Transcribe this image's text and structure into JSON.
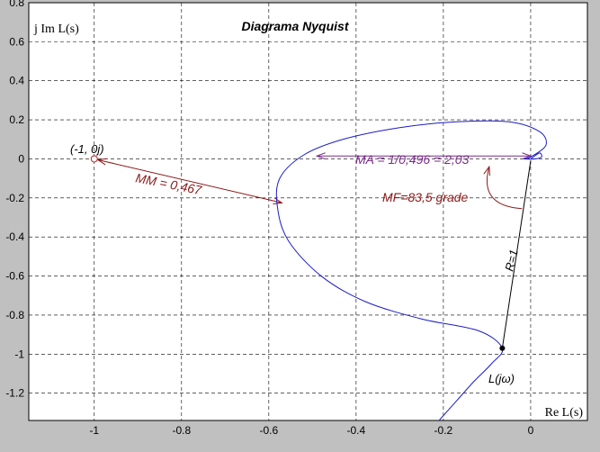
{
  "chart_data": {
    "type": "line",
    "title": "Diagrama Nyquist",
    "xlabel": "Re L(s)",
    "ylabel": "j Im L(s)",
    "xlim": [
      -1.15,
      0.13
    ],
    "ylim": [
      -1.34,
      0.8
    ],
    "grid": true,
    "x_ticks": [
      -1,
      -0.8,
      -0.6,
      -0.4,
      -0.2,
      0
    ],
    "x_tick_labels": [
      "-1",
      "-0.8",
      "-0.6",
      "-0.4",
      "-0.2",
      "0"
    ],
    "y_ticks": [
      0.8,
      0.6,
      0.4,
      0.2,
      0,
      -0.2,
      -0.4,
      -0.6,
      -0.8,
      -1,
      -1.2
    ],
    "y_tick_labels": [
      "0.8",
      "0.6",
      "0.4",
      "0.2",
      "0",
      "-0.2",
      "-0.4",
      "-0.6",
      "-0.8",
      "-1",
      "-1.2"
    ],
    "series": [
      {
        "color": "#1c1cc8",
        "x": [
          -0.21,
          -0.17,
          -0.13,
          -0.09,
          -0.065,
          -0.12,
          -0.25,
          -0.38,
          -0.48,
          -0.555,
          -0.58,
          -0.575,
          -0.52,
          -0.43,
          -0.3,
          -0.17,
          -0.05,
          0.02,
          0.035,
          0.0,
          -0.015,
          0.01,
          0.025,
          0.02,
          0.0
        ],
        "y": [
          -1.34,
          -1.24,
          -1.14,
          -1.05,
          -0.97,
          -0.88,
          -0.82,
          -0.73,
          -0.6,
          -0.42,
          -0.25,
          -0.1,
          0.02,
          0.1,
          0.16,
          0.19,
          0.19,
          0.14,
          0.07,
          0.01,
          0.0,
          0.0,
          0.01,
          0.03,
          0.0
        ]
      }
    ],
    "critical_point": {
      "x": -1,
      "y": 0,
      "label": "(-1, 0j)"
    },
    "crossover_point": {
      "x": -0.065,
      "y": -0.97,
      "label": "L(jω)"
    },
    "annotations": {
      "mm": "MM = 0,467",
      "ma": "MA = 1/0,496 = 2,03",
      "mf": "MF=83,5 grade",
      "r": "R=1"
    }
  }
}
